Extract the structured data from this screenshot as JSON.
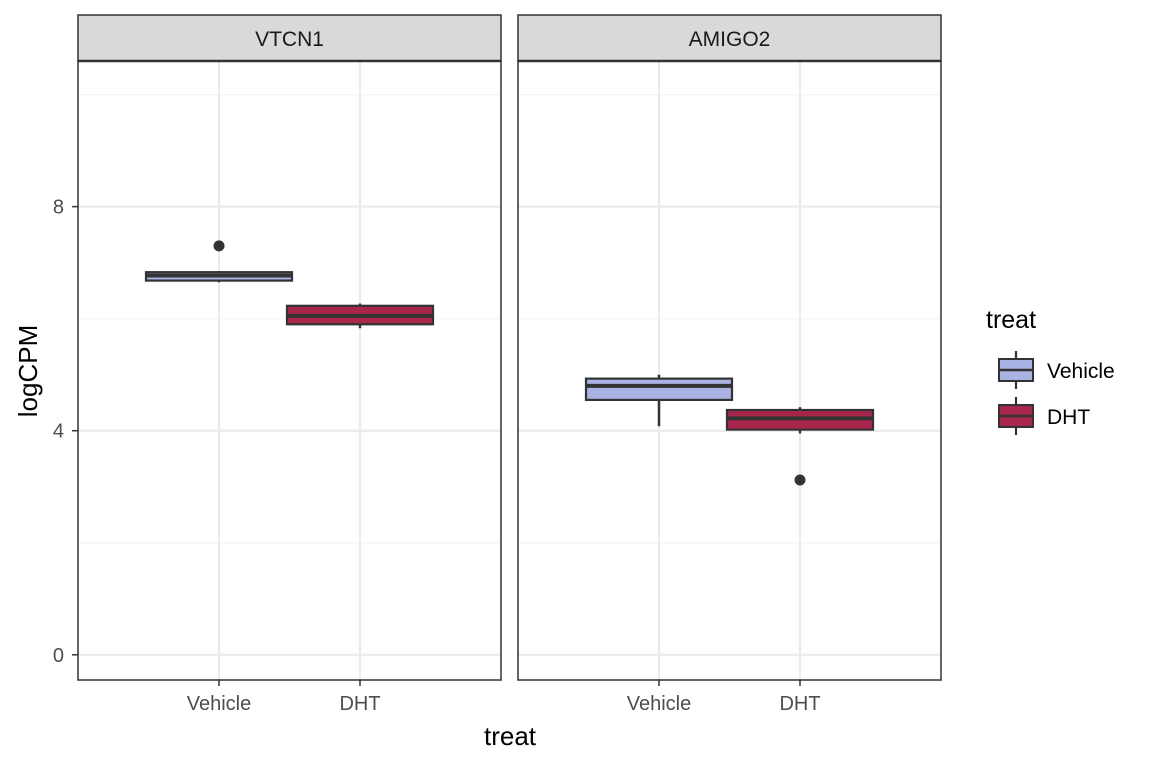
{
  "chart_data": {
    "type": "boxplot",
    "title": "",
    "xlabel": "treat",
    "ylabel": "logCPM",
    "ylim": [
      -0.45,
      10.6
    ],
    "yticks": [
      0,
      4,
      8
    ],
    "grid": true,
    "categories": [
      "Vehicle",
      "DHT"
    ],
    "legend": {
      "title": "treat",
      "position": "right",
      "entries": [
        {
          "label": "Vehicle",
          "color": "#aab1e3"
        },
        {
          "label": "DHT",
          "color": "#a8264b"
        }
      ]
    },
    "panels": [
      {
        "name": "VTCN1",
        "boxes": [
          {
            "category": "Vehicle",
            "whisker_low": 6.65,
            "q1": 6.68,
            "median": 6.77,
            "q3": 6.83,
            "whisker_high": 6.85,
            "outliers": [
              7.3
            ]
          },
          {
            "category": "DHT",
            "whisker_low": 5.83,
            "q1": 5.9,
            "median": 6.05,
            "q3": 6.23,
            "whisker_high": 6.27,
            "outliers": []
          }
        ]
      },
      {
        "name": "AMIGO2",
        "boxes": [
          {
            "category": "Vehicle",
            "whisker_low": 4.08,
            "q1": 4.55,
            "median": 4.8,
            "q3": 4.93,
            "whisker_high": 5.0,
            "outliers": []
          },
          {
            "category": "DHT",
            "whisker_low": 3.95,
            "q1": 4.02,
            "median": 4.22,
            "q3": 4.37,
            "whisker_high": 4.42,
            "outliers": [
              3.12
            ]
          }
        ]
      }
    ]
  },
  "colors": {
    "panel_border": "#333333",
    "strip_fill": "#d9d9d9",
    "grid_major": "#ebebeb",
    "grid_minor": "#f3f3f3",
    "box_outline": "#333333",
    "outlier": "#333333"
  }
}
